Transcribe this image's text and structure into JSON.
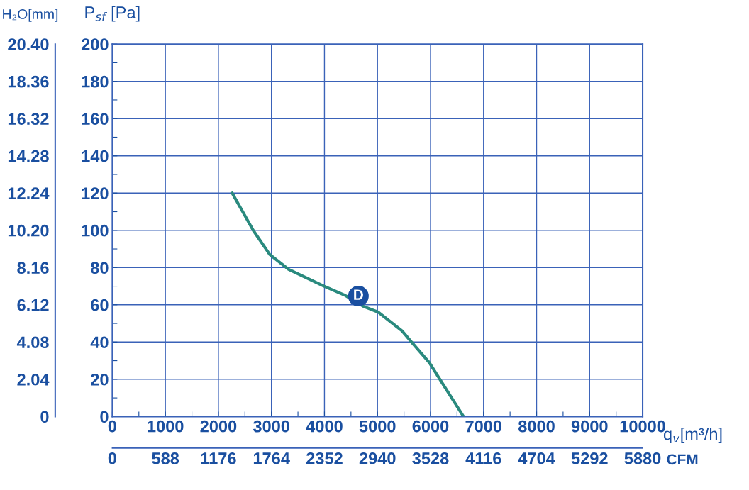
{
  "chart_data": {
    "type": "line",
    "xlabel": "q$_{v}$[m³/h]",
    "ylabel": "P$_{sf}$ [Pa]",
    "y2label": "H₂O[mm]",
    "x2label": "CFM",
    "x": [
      2260,
      2656,
      2968,
      3325,
      3993,
      4394,
      4746,
      5018,
      5464,
      5642,
      5976,
      6221,
      6622
    ],
    "series": [
      {
        "color": "#2a8a7e",
        "values": [
          120,
          100,
          87,
          79,
          70,
          65,
          59,
          56,
          46,
          40,
          29,
          18,
          0
        ]
      }
    ],
    "annotations": [
      {
        "text": "D",
        "x": 4640,
        "y": 64.7
      }
    ],
    "xlim": [
      0,
      10000
    ],
    "xticks": [
      0,
      {
        "value": 500,
        "label": null
      },
      1000,
      {
        "value": 1500,
        "label": null
      },
      2000,
      {
        "value": 2500,
        "label": null
      },
      3000,
      {
        "value": 3500,
        "label": null
      },
      4000,
      {
        "value": 4500,
        "label": null
      },
      5000,
      {
        "value": 5500,
        "label": null
      },
      6000,
      {
        "value": 6500,
        "label": null
      },
      7000,
      {
        "value": 7500,
        "label": null
      },
      8000,
      {
        "value": 8500,
        "label": null
      },
      9000,
      {
        "value": 9500,
        "label": null
      },
      10000
    ],
    "ylim": [
      0,
      200
    ],
    "yticks": [
      0,
      {
        "value": 10,
        "label": null
      },
      20,
      {
        "value": 30,
        "label": null
      },
      40,
      {
        "value": 50,
        "label": null
      },
      60,
      {
        "value": 70,
        "label": null
      },
      80,
      {
        "value": 90,
        "label": null
      },
      100,
      {
        "value": 110,
        "label": null
      },
      120,
      {
        "value": 130,
        "label": null
      },
      140,
      {
        "value": 150,
        "label": null
      },
      160,
      {
        "value": 170,
        "label": null
      },
      180,
      {
        "value": 190,
        "label": null
      },
      200
    ],
    "y2lim": [
      0,
      20.4
    ],
    "y2ticks": [
      0,
      2.04,
      4.08,
      6.12,
      8.16,
      {
        "value": 10.2,
        "label": "10.20"
      },
      12.24,
      14.28,
      16.32,
      18.36,
      {
        "value": 20.4,
        "label": "20.40"
      }
    ],
    "x2lim": [
      0,
      5880
    ],
    "x2ticks": [
      0,
      588,
      1176,
      1764,
      2352,
      2940,
      3528,
      4116,
      4704,
      5292,
      5880
    ],
    "grid": true,
    "marker": "none",
    "line_style": "solid"
  }
}
